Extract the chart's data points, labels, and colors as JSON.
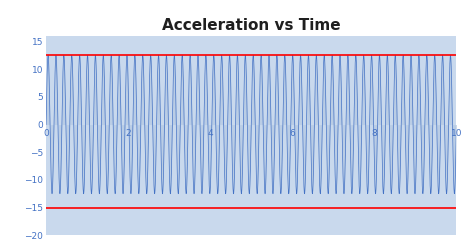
{
  "title": "Acceleration vs Time",
  "title_fontsize": 11,
  "title_fontweight": "bold",
  "title_color": "#1F1F1F",
  "xlim": [
    0,
    10
  ],
  "ylim": [
    -20,
    16
  ],
  "xticks": [
    0,
    2,
    4,
    6,
    8,
    10
  ],
  "yticks": [
    -20,
    -15,
    -10,
    -5,
    0,
    5,
    10,
    15
  ],
  "amplitude": 12.5,
  "frequency": 5.2,
  "n_points": 10000,
  "hline1": 12.5,
  "hline2": -15.0,
  "wave_color": "#4472C4",
  "wave_linewidth": 0.5,
  "fill_color": "#B8CCE4",
  "fill_alpha": 0.85,
  "hline_color": "#FF0000",
  "hline_linewidth": 1.2,
  "bg_color": "#C9D9ED",
  "fig_bg_color": "#FFFFFF",
  "tick_color": "#4472C4",
  "tick_fontsize": 6.5,
  "spine_color": "#AAAACC"
}
